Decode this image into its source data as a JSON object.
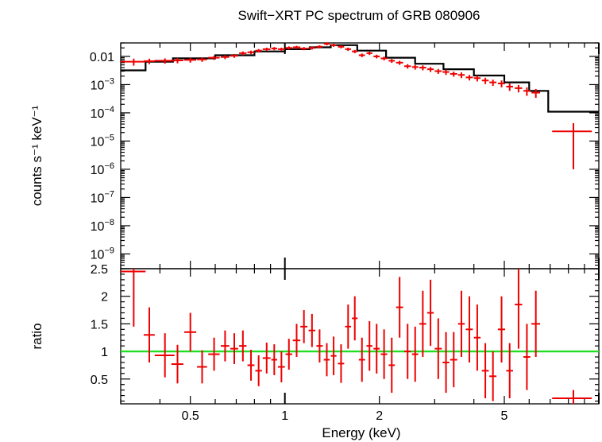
{
  "chart_data": [
    {
      "type": "scatter",
      "title": "Swift−XRT PC spectrum of GRB 080906",
      "xlabel": "",
      "ylabel": "counts s⁻¹ keV⁻¹",
      "x_scale": "log",
      "y_scale": "log",
      "xlim": [
        0.3,
        10
      ],
      "ylim": [
        3e-10,
        0.03
      ],
      "yticks": [
        {
          "v": 0.01,
          "label": "0.01",
          "exp": ""
        },
        {
          "v": 0.001,
          "label": "10",
          "exp": "−3"
        },
        {
          "v": 0.0001,
          "label": "10",
          "exp": "−4"
        },
        {
          "v": 1e-05,
          "label": "10",
          "exp": "−5"
        },
        {
          "v": 1e-06,
          "label": "10",
          "exp": "−6"
        },
        {
          "v": 1e-07,
          "label": "10",
          "exp": "−7"
        },
        {
          "v": 1e-08,
          "label": "10",
          "exp": "−8"
        },
        {
          "v": 1e-09,
          "label": "10",
          "exp": "−9"
        }
      ],
      "colors": {
        "data": "#ee0000",
        "model": "#000000"
      },
      "series": [
        {
          "kind": "data",
          "x": [
            0.33,
            0.37,
            0.415,
            0.455,
            0.5,
            0.545,
            0.595,
            0.645,
            0.69,
            0.735,
            0.78,
            0.825,
            0.875,
            0.925,
            0.975,
            1.03,
            1.09,
            1.15,
            1.22,
            1.29,
            1.36,
            1.43,
            1.51,
            1.59,
            1.67,
            1.76,
            1.86,
            1.96,
            2.07,
            2.19,
            2.32,
            2.46,
            2.6,
            2.75,
            2.91,
            3.08,
            3.26,
            3.45,
            3.65,
            3.87,
            4.1,
            4.35,
            4.6,
            4.9,
            5.2,
            5.55,
            5.9,
            6.3,
            8.3
          ],
          "xerr": [
            0.03,
            0.015,
            0.03,
            0.02,
            0.022,
            0.02,
            0.025,
            0.02,
            0.02,
            0.02,
            0.02,
            0.02,
            0.025,
            0.02,
            0.025,
            0.025,
            0.03,
            0.03,
            0.03,
            0.03,
            0.03,
            0.03,
            0.035,
            0.035,
            0.035,
            0.04,
            0.04,
            0.045,
            0.05,
            0.05,
            0.06,
            0.06,
            0.06,
            0.07,
            0.07,
            0.08,
            0.08,
            0.09,
            0.09,
            0.1,
            0.1,
            0.11,
            0.12,
            0.13,
            0.13,
            0.15,
            0.15,
            0.2,
            1.2
          ],
          "y": [
            0.0065,
            0.0068,
            0.007,
            0.0072,
            0.0075,
            0.0078,
            0.009,
            0.0095,
            0.0105,
            0.013,
            0.014,
            0.016,
            0.018,
            0.019,
            0.018,
            0.02,
            0.021,
            0.019,
            0.02,
            0.022,
            0.028,
            0.025,
            0.022,
            0.018,
            0.015,
            0.011,
            0.013,
            0.01,
            0.0085,
            0.007,
            0.006,
            0.0045,
            0.0042,
            0.004,
            0.0035,
            0.003,
            0.0028,
            0.0024,
            0.0022,
            0.0018,
            0.0017,
            0.0014,
            0.0012,
            0.0011,
            0.00085,
            0.00075,
            0.0006,
            0.00052,
            2.2e-05
          ],
          "yerr": [
            0.0018,
            0.0015,
            0.0015,
            0.0015,
            0.0015,
            0.0014,
            0.0015,
            0.0015,
            0.0016,
            0.002,
            0.002,
            0.0022,
            0.0024,
            0.0025,
            0.0024,
            0.0026,
            0.0027,
            0.0025,
            0.0026,
            0.0028,
            0.0035,
            0.0032,
            0.0028,
            0.0024,
            0.002,
            0.0016,
            0.0018,
            0.0015,
            0.0013,
            0.0011,
            0.001,
            0.0008,
            0.0008,
            0.0008,
            0.0007,
            0.0006,
            0.0006,
            0.0005,
            0.0005,
            0.0004,
            0.0004,
            0.00035,
            0.0003,
            0.0003,
            0.00025,
            0.00022,
            0.0002,
            0.00018,
            2.1e-05
          ]
        },
        {
          "kind": "model",
          "x": [
            0.3,
            0.36,
            0.36,
            0.44,
            0.44,
            0.6,
            0.6,
            0.8,
            0.8,
            1.0,
            1.0,
            1.2,
            1.2,
            1.4,
            1.4,
            1.7,
            1.7,
            2.1,
            2.1,
            2.6,
            2.6,
            3.2,
            3.2,
            4.0,
            4.0,
            5.0,
            5.0,
            6.0,
            6.0,
            6.9,
            6.9,
            10.0
          ],
          "y": [
            0.0032,
            0.0032,
            0.0065,
            0.0065,
            0.0085,
            0.0085,
            0.011,
            0.011,
            0.015,
            0.015,
            0.018,
            0.018,
            0.021,
            0.021,
            0.025,
            0.025,
            0.016,
            0.016,
            0.009,
            0.009,
            0.0055,
            0.0055,
            0.0035,
            0.0035,
            0.0021,
            0.0021,
            0.0012,
            0.0012,
            0.0006,
            0.0006,
            0.00011,
            0.00011
          ]
        }
      ]
    },
    {
      "type": "scatter",
      "xlabel": "Energy (keV)",
      "ylabel": "ratio",
      "x_scale": "log",
      "xlim": [
        0.3,
        10
      ],
      "ylim": [
        0.05,
        2.5
      ],
      "xticks": [
        {
          "v": 0.5,
          "label": "0.5"
        },
        {
          "v": 1,
          "label": "1"
        },
        {
          "v": 2,
          "label": "2"
        },
        {
          "v": 5,
          "label": "5"
        }
      ],
      "yticks": [
        {
          "v": 0.5,
          "label": "0.5"
        },
        {
          "v": 1,
          "label": "1"
        },
        {
          "v": 1.5,
          "label": "1.5"
        },
        {
          "v": 2,
          "label": "2"
        },
        {
          "v": 2.5,
          "label": "2.5"
        }
      ],
      "reference_line": 1,
      "colors": {
        "data": "#ee0000",
        "reference": "#22dd22"
      },
      "series": [
        {
          "kind": "data",
          "x": [
            0.33,
            0.37,
            0.415,
            0.455,
            0.5,
            0.545,
            0.595,
            0.645,
            0.69,
            0.735,
            0.78,
            0.825,
            0.875,
            0.925,
            0.975,
            1.03,
            1.09,
            1.15,
            1.22,
            1.29,
            1.36,
            1.43,
            1.51,
            1.59,
            1.67,
            1.76,
            1.86,
            1.96,
            2.07,
            2.19,
            2.32,
            2.46,
            2.6,
            2.75,
            2.91,
            3.08,
            3.26,
            3.45,
            3.65,
            3.87,
            4.1,
            4.35,
            4.6,
            4.9,
            5.2,
            5.55,
            5.9,
            6.3,
            8.3
          ],
          "xerr": [
            0.03,
            0.015,
            0.03,
            0.02,
            0.022,
            0.02,
            0.025,
            0.02,
            0.02,
            0.02,
            0.02,
            0.02,
            0.025,
            0.02,
            0.025,
            0.025,
            0.03,
            0.03,
            0.03,
            0.03,
            0.03,
            0.03,
            0.035,
            0.035,
            0.035,
            0.04,
            0.04,
            0.045,
            0.05,
            0.05,
            0.06,
            0.06,
            0.06,
            0.07,
            0.07,
            0.08,
            0.08,
            0.09,
            0.09,
            0.1,
            0.1,
            0.11,
            0.12,
            0.13,
            0.13,
            0.15,
            0.15,
            0.2,
            1.2
          ],
          "y": [
            2.45,
            1.3,
            0.93,
            0.77,
            1.35,
            0.72,
            0.95,
            1.1,
            1.05,
            1.1,
            0.75,
            0.65,
            0.88,
            0.85,
            0.72,
            0.95,
            1.2,
            1.45,
            1.38,
            1.1,
            0.85,
            0.92,
            0.78,
            1.45,
            1.6,
            0.85,
            1.1,
            1.05,
            0.95,
            0.75,
            1.8,
            1.0,
            0.95,
            1.5,
            1.7,
            1.05,
            0.8,
            0.85,
            1.5,
            1.4,
            1.25,
            0.65,
            0.55,
            1.4,
            0.65,
            1.85,
            0.9,
            1.5,
            0.15
          ],
          "yerr": [
            1.0,
            0.5,
            0.4,
            0.35,
            0.35,
            0.3,
            0.3,
            0.28,
            0.28,
            0.28,
            0.28,
            0.28,
            0.28,
            0.28,
            0.28,
            0.28,
            0.3,
            0.3,
            0.3,
            0.3,
            0.3,
            0.35,
            0.35,
            0.4,
            0.4,
            0.4,
            0.45,
            0.45,
            0.45,
            0.5,
            0.55,
            0.5,
            0.5,
            0.6,
            0.6,
            0.55,
            0.55,
            0.5,
            0.6,
            0.6,
            0.6,
            0.5,
            0.45,
            0.6,
            0.5,
            0.8,
            0.6,
            0.6,
            0.15
          ]
        }
      ]
    }
  ]
}
